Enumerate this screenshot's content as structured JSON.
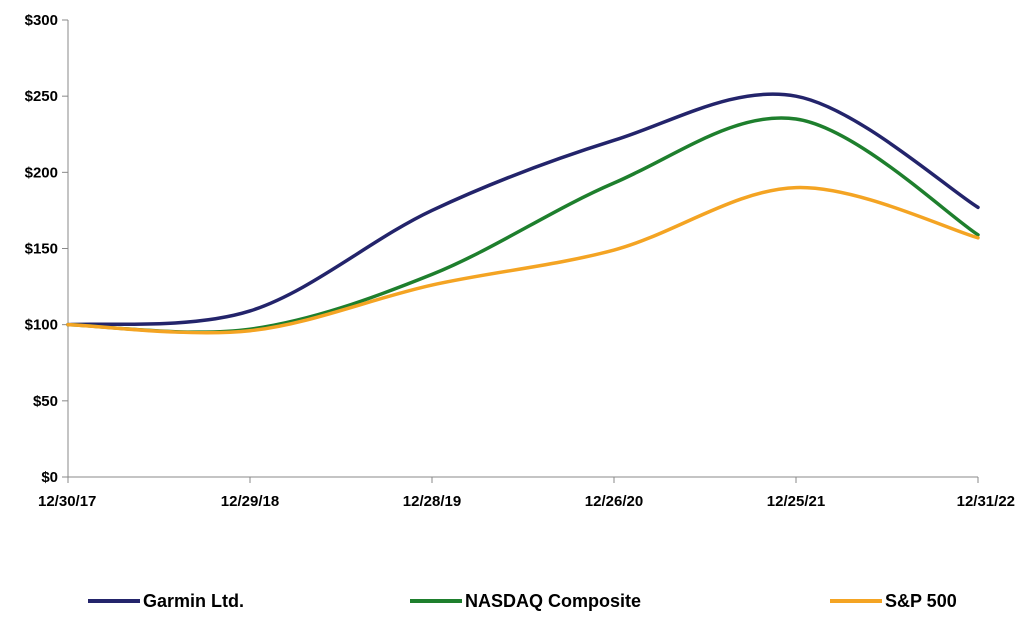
{
  "chart_data": {
    "type": "line",
    "title": "",
    "xlabel": "",
    "ylabel": "",
    "x": [
      "12/30/17",
      "12/29/18",
      "12/28/19",
      "12/26/20",
      "12/25/21",
      "12/31/22"
    ],
    "ylim": [
      0,
      300
    ],
    "yticks": [
      0,
      50,
      100,
      150,
      200,
      250,
      300
    ],
    "ytick_labels": [
      "$0",
      "$50",
      "$100",
      "$150",
      "$200",
      "$250",
      "$300"
    ],
    "grid": false,
    "legend_position": "bottom",
    "series": [
      {
        "name": "Garmin Ltd.",
        "color": "#23246b",
        "values": [
          100,
          109,
          175,
          221,
          250,
          177
        ]
      },
      {
        "name": "NASDAQ Composite",
        "color": "#1e7f2d",
        "values": [
          100,
          97,
          133,
          193,
          235,
          159
        ]
      },
      {
        "name": "S&P 500",
        "color": "#f4a423",
        "values": [
          100,
          96,
          126,
          149,
          190,
          157
        ]
      }
    ]
  }
}
